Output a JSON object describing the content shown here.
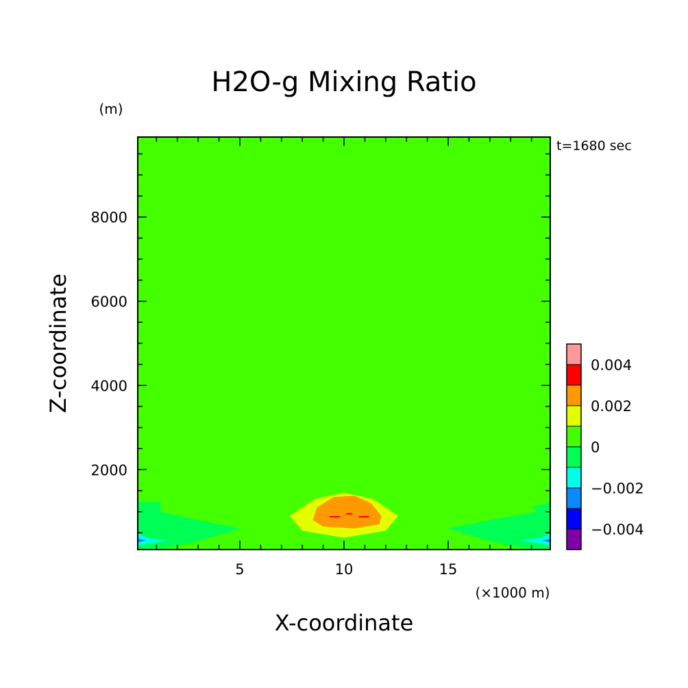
{
  "chart_data": {
    "type": "heatmap",
    "title": "H2O-g Mixing Ratio",
    "xlabel": "X-coordinate",
    "ylabel": "Z-coordinate",
    "x_unit": "(×1000 m)",
    "y_unit": "(m)",
    "time_label": "t=1680 sec",
    "xlim": [
      0.1,
      19.9
    ],
    "ylim": [
      100,
      9900
    ],
    "x_ticks": [
      5,
      10,
      15
    ],
    "y_ticks": [
      2000,
      4000,
      6000,
      8000
    ],
    "x_tick_labels": [
      "5",
      "10",
      "15"
    ],
    "y_tick_labels": [
      "2000",
      "4000",
      "6000",
      "8000"
    ],
    "colorbar": {
      "levels": [
        -0.005,
        -0.004,
        -0.003,
        -0.002,
        -0.001,
        0,
        0.001,
        0.002,
        0.003,
        0.004,
        0.005
      ],
      "colors": [
        "#7f00a8",
        "#0000ff",
        "#0a8aff",
        "#00ffe6",
        "#00ff55",
        "#44ff00",
        "#e2ff00",
        "#ff9900",
        "#ff0000",
        "#ff9999"
      ],
      "tick_values": [
        -0.004,
        -0.002,
        0,
        0.002,
        0.004
      ],
      "tick_labels": [
        "−0.004",
        "−0.002",
        "0",
        "0.002",
        "0.004"
      ]
    },
    "regions": [
      {
        "level": 0,
        "points": [
          [
            0.1,
            9600
          ],
          [
            5.3,
            9600
          ],
          [
            5.45,
            8000
          ],
          [
            6.0,
            6700
          ],
          [
            7.3,
            6000
          ],
          [
            10,
            5900
          ],
          [
            12.7,
            6000
          ],
          [
            14.0,
            6700
          ],
          [
            14.55,
            8000
          ],
          [
            14.7,
            9600
          ],
          [
            19.9,
            9600
          ],
          [
            19.9,
            9900
          ],
          [
            0.1,
            9900
          ]
        ]
      },
      {
        "level": 0,
        "points": [
          [
            0.1,
            6000
          ],
          [
            3.8,
            6000
          ],
          [
            5.2,
            5200
          ],
          [
            7.0,
            4100
          ],
          [
            7.7,
            3800
          ],
          [
            10,
            3600
          ],
          [
            12.3,
            3800
          ],
          [
            13.4,
            4600
          ],
          [
            14.0,
            5600
          ],
          [
            14.7,
            6000
          ],
          [
            19.9,
            6000
          ],
          [
            19.9,
            3700
          ],
          [
            15.9,
            3750
          ],
          [
            14.5,
            3600
          ],
          [
            14.2,
            2800
          ],
          [
            14.6,
            2050
          ],
          [
            16.2,
            1800
          ],
          [
            19.9,
            1800
          ],
          [
            19.9,
            1230
          ],
          [
            19.0,
            1100
          ],
          [
            19.3,
            1000
          ],
          [
            17.0,
            800
          ],
          [
            15.0,
            1000
          ],
          [
            13.4,
            1300
          ],
          [
            12.8,
            1500
          ],
          [
            10,
            1800
          ],
          [
            7.2,
            1500
          ],
          [
            6.6,
            1300
          ],
          [
            5.0,
            1000
          ],
          [
            3.0,
            800
          ],
          [
            1.2,
            1000
          ],
          [
            1.2,
            1230
          ],
          [
            0.1,
            1230
          ],
          [
            0.1,
            1800
          ],
          [
            3.8,
            1850
          ],
          [
            5.6,
            2050
          ],
          [
            5.65,
            2800
          ],
          [
            5.3,
            3600
          ],
          [
            4.0,
            3750
          ],
          [
            0.1,
            3800
          ]
        ]
      },
      {
        "level": 0,
        "points": [
          [
            6.0,
            1700
          ],
          [
            10,
            1900
          ],
          [
            14.0,
            1700
          ],
          [
            13.0,
            1300
          ],
          [
            10,
            1200
          ],
          [
            7.0,
            1300
          ]
        ]
      },
      {
        "level": 0,
        "points": [
          [
            7.6,
            500
          ],
          [
            8.2,
            100
          ],
          [
            11.8,
            100
          ],
          [
            12.4,
            500
          ]
        ]
      },
      {
        "level": 0.001,
        "points": [
          [
            7.4,
            900
          ],
          [
            8.6,
            1300
          ],
          [
            10,
            1450
          ],
          [
            11.4,
            1300
          ],
          [
            12.6,
            900
          ],
          [
            12.0,
            550
          ],
          [
            10,
            380
          ],
          [
            8.0,
            550
          ]
        ]
      },
      {
        "level": 0.002,
        "points": [
          [
            8.5,
            800
          ],
          [
            8.7,
            1100
          ],
          [
            9.5,
            1350
          ],
          [
            10.5,
            1380
          ],
          [
            11.3,
            1200
          ],
          [
            11.8,
            900
          ],
          [
            11.7,
            700
          ],
          [
            10.5,
            600
          ],
          [
            9.0,
            650
          ]
        ]
      },
      {
        "level": -0.001,
        "points": [
          [
            0.1,
            1230
          ],
          [
            1.2,
            1230
          ],
          [
            1.2,
            1000
          ],
          [
            3.0,
            800
          ],
          [
            5.0,
            600
          ],
          [
            3.0,
            300
          ],
          [
            1.0,
            100
          ],
          [
            0.1,
            100
          ]
        ]
      },
      {
        "level": -0.001,
        "points": [
          [
            19.9,
            1230
          ],
          [
            19.0,
            1100
          ],
          [
            19.3,
            1000
          ],
          [
            17.0,
            800
          ],
          [
            15.0,
            600
          ],
          [
            17.0,
            300
          ],
          [
            19.0,
            100
          ],
          [
            19.9,
            100
          ]
        ]
      },
      {
        "level": -0.002,
        "points": [
          [
            0.1,
            480
          ],
          [
            0.6,
            380
          ],
          [
            1.5,
            320
          ],
          [
            0.6,
            240
          ],
          [
            0.1,
            200
          ]
        ]
      },
      {
        "level": -0.002,
        "points": [
          [
            19.9,
            480
          ],
          [
            19.4,
            380
          ],
          [
            18.5,
            320
          ],
          [
            19.4,
            240
          ],
          [
            19.9,
            200
          ]
        ]
      },
      {
        "level": -0.003,
        "points": [
          [
            0.1,
            360
          ],
          [
            0.5,
            320
          ],
          [
            0.1,
            270
          ]
        ]
      },
      {
        "level": -0.003,
        "points": [
          [
            19.9,
            360
          ],
          [
            19.5,
            320
          ],
          [
            19.9,
            270
          ]
        ]
      }
    ],
    "marks": [
      {
        "level": 0.003,
        "points": [
          [
            9.3,
            880
          ],
          [
            9.8,
            880
          ]
        ]
      },
      {
        "level": 0.003,
        "points": [
          [
            10.1,
            950
          ],
          [
            10.4,
            950
          ]
        ]
      },
      {
        "level": 0.003,
        "points": [
          [
            10.7,
            880
          ],
          [
            11.2,
            880
          ]
        ]
      }
    ]
  }
}
